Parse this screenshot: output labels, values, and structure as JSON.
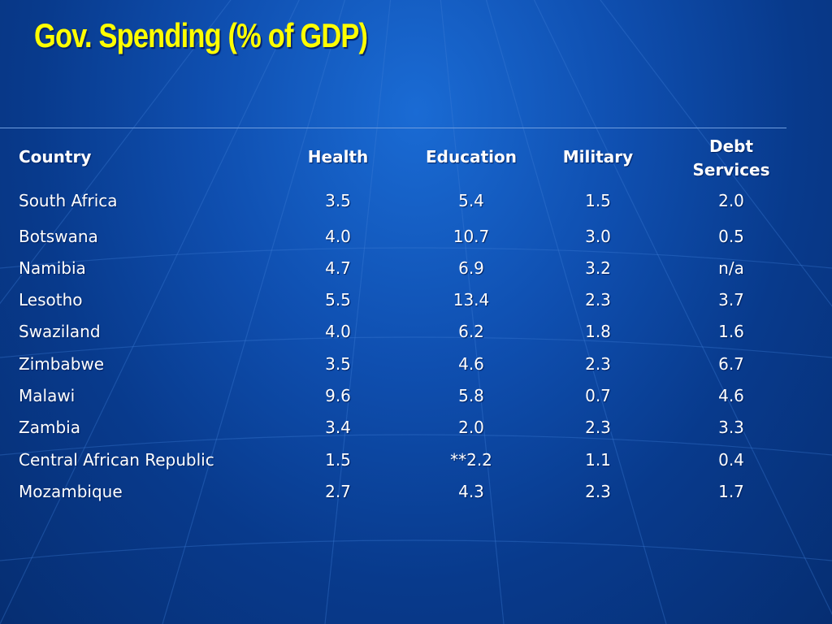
{
  "title": "Gov. Spending (% of GDP)",
  "table": {
    "headers": [
      "Country",
      "Health",
      "Education",
      "Military",
      "Debt\nServices"
    ],
    "rows": [
      [
        "South Africa",
        "3.5",
        "5.4",
        "1.5",
        "2.0"
      ],
      [
        "Botswana",
        "4.0",
        "10.7",
        "3.0",
        "0.5"
      ],
      [
        "Namibia",
        "4.7",
        "6.9",
        "3.2",
        "n/a"
      ],
      [
        "Lesotho",
        "5.5",
        "13.4",
        "2.3",
        "3.7"
      ],
      [
        "Swaziland",
        "4.0",
        "6.2",
        "1.8",
        "1.6"
      ],
      [
        "Zimbabwe",
        "3.5",
        "4.6",
        "2.3",
        "6.7"
      ],
      [
        "Malawi",
        "9.6",
        "5.8",
        "0.7",
        "4.6"
      ],
      [
        "Zambia",
        "3.4",
        "2.0",
        "2.3",
        "3.3"
      ],
      [
        "Central African Republic",
        "1.5",
        "**2.2",
        "1.1",
        "0.4"
      ],
      [
        "Mozambique",
        "2.7",
        "4.3",
        "2.3",
        "1.7"
      ]
    ]
  },
  "colors": {
    "title": "#ffff00",
    "text": "#ffffff",
    "background": "#0f4fb0"
  }
}
